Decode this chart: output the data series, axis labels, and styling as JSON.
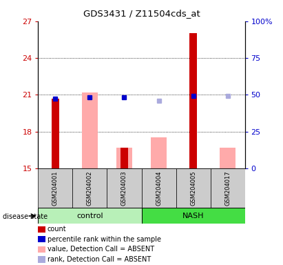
{
  "title": "GDS3431 / Z11504cds_at",
  "samples": [
    "GSM204001",
    "GSM204002",
    "GSM204003",
    "GSM204004",
    "GSM204005",
    "GSM204017"
  ],
  "ylim_left": [
    15,
    27
  ],
  "ylim_right": [
    0,
    100
  ],
  "yticks_left": [
    15,
    18,
    21,
    24,
    27
  ],
  "yticks_right": [
    0,
    25,
    50,
    75,
    100
  ],
  "ytick_labels_right": [
    "0",
    "25",
    "50",
    "75",
    "100%"
  ],
  "red_bars": [
    20.7,
    null,
    16.7,
    null,
    26.0,
    null
  ],
  "pink_bars": [
    null,
    21.2,
    16.7,
    17.5,
    null,
    16.7
  ],
  "blue_squares": [
    20.7,
    20.8,
    20.8,
    null,
    20.9,
    null
  ],
  "light_blue_squares": [
    null,
    null,
    null,
    20.5,
    null,
    20.9
  ],
  "red_color": "#cc0000",
  "pink_color": "#ffaaaa",
  "blue_color": "#0000cc",
  "light_blue_color": "#aaaadd",
  "control_color": "#b8f0b8",
  "nash_color": "#44dd44",
  "gray_color": "#cccccc",
  "legend_items": [
    {
      "label": "count",
      "color": "#cc0000"
    },
    {
      "label": "percentile rank within the sample",
      "color": "#0000cc"
    },
    {
      "label": "value, Detection Call = ABSENT",
      "color": "#ffaaaa"
    },
    {
      "label": "rank, Detection Call = ABSENT",
      "color": "#aaaadd"
    }
  ]
}
